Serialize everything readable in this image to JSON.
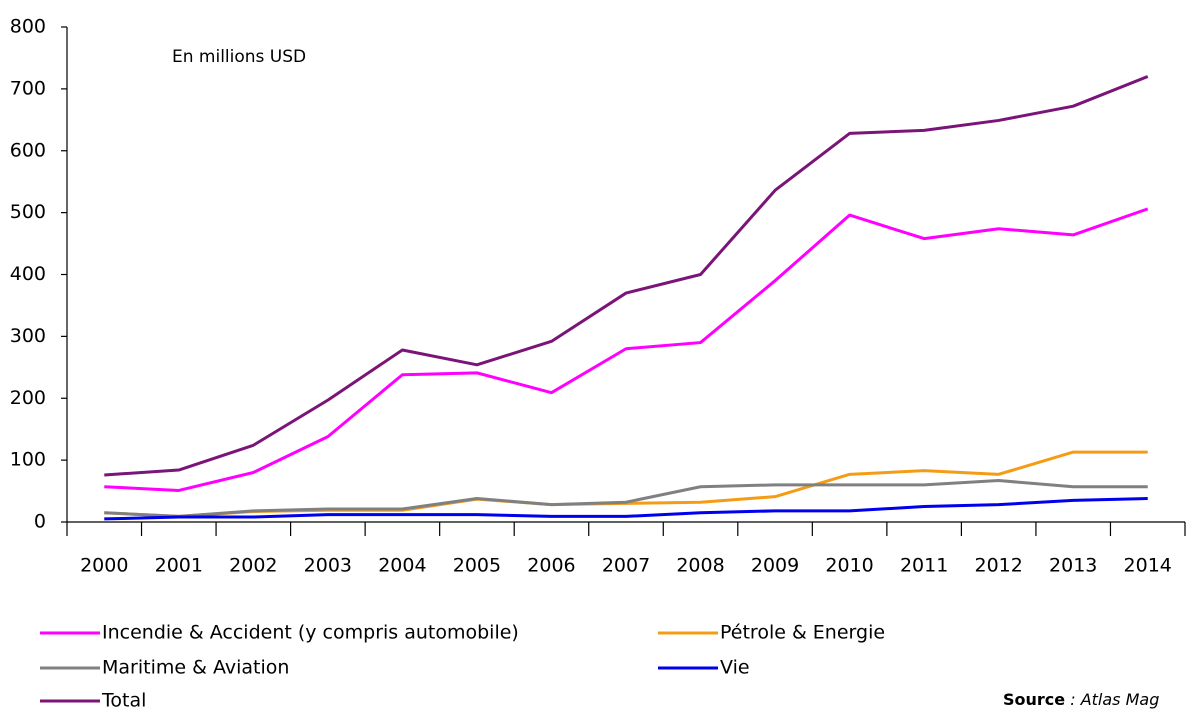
{
  "chart_data": {
    "type": "line",
    "annotation": "En millions USD",
    "categories": [
      "2000",
      "2001",
      "2002",
      "2003",
      "2004",
      "2005",
      "2006",
      "2007",
      "2008",
      "2009",
      "2010",
      "2011",
      "2012",
      "2013",
      "2014"
    ],
    "series": [
      {
        "name": "Incendie & Accident (y compris automobile)",
        "color": "#ff00ff",
        "values": [
          57,
          51,
          80,
          138,
          238,
          241,
          209,
          280,
          290,
          390,
          496,
          458,
          474,
          464,
          506
        ]
      },
      {
        "name": "Pétrole & Energie",
        "color": "#f59c17",
        "values": [
          15,
          9,
          17,
          19,
          19,
          37,
          28,
          30,
          32,
          41,
          77,
          83,
          77,
          113,
          113
        ]
      },
      {
        "name": "Maritime & Aviation",
        "color": "#808080",
        "values": [
          15,
          9,
          18,
          21,
          21,
          38,
          28,
          32,
          57,
          60,
          60,
          60,
          67,
          57,
          57
        ]
      },
      {
        "name": "Vie",
        "color": "#0000ee",
        "values": [
          5,
          8,
          8,
          12,
          12,
          12,
          9,
          9,
          15,
          18,
          18,
          25,
          28,
          35,
          38
        ]
      },
      {
        "name": "Total",
        "color": "#7b1478",
        "values": [
          76,
          84,
          124,
          197,
          278,
          254,
          292,
          370,
          400,
          536,
          628,
          633,
          649,
          672,
          720
        ]
      }
    ],
    "ylim": [
      0,
      800
    ],
    "yticks": [
      0,
      100,
      200,
      300,
      400,
      500,
      600,
      700,
      800
    ],
    "grid": false,
    "legend": "bottom",
    "source_label": "Source",
    "source_text": " : Atlas Mag"
  }
}
